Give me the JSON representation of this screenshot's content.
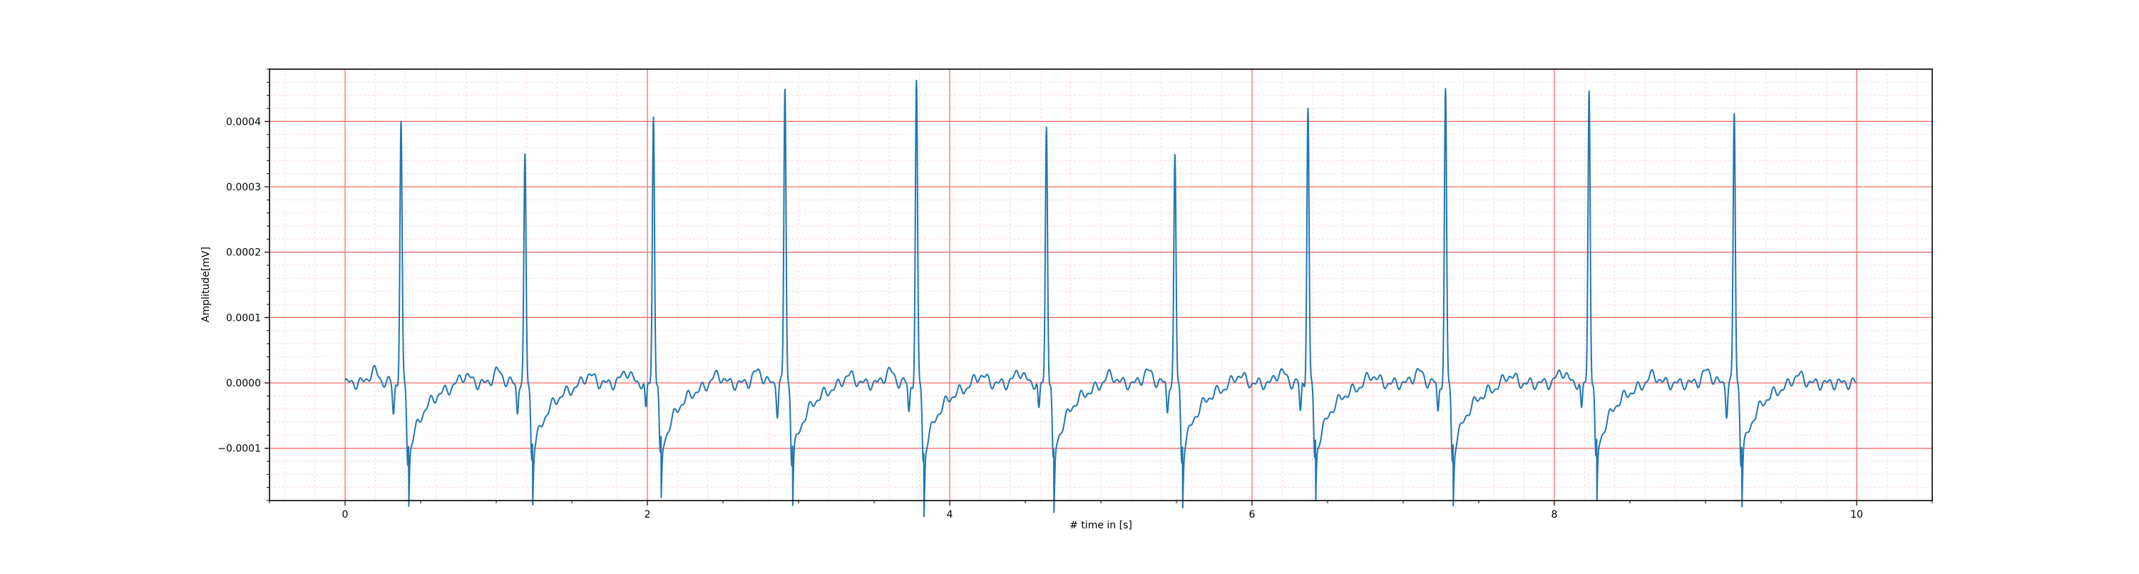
{
  "chart_data": {
    "type": "line",
    "title": "",
    "xlabel": "# time in [s]",
    "ylabel": "Amplitude[mV]",
    "xlim": [
      -0.5,
      10.5
    ],
    "ylim": [
      -0.00018,
      0.00048
    ],
    "x_ticks": [
      0,
      2,
      4,
      6,
      8,
      10
    ],
    "x_tick_labels": [
      "0",
      "2",
      "4",
      "6",
      "8",
      "10"
    ],
    "y_ticks": [
      -0.0001,
      0.0,
      0.0001,
      0.0002,
      0.0003,
      0.0004
    ],
    "y_tick_labels": [
      "−0.0001",
      "0.0000",
      "0.0001",
      "0.0002",
      "0.0003",
      "0.0004"
    ],
    "grid": {
      "major": true,
      "minor": true,
      "major_color": "#ff6b6b",
      "minor_color": "#ffd6dc",
      "x_major_step": 2,
      "y_major_step": 0.0001,
      "x_minor_step": 0.2,
      "y_minor_step": 2e-05
    },
    "series": [
      {
        "color": "#1f77b4",
        "duration_s": 10.0,
        "beats": [
          {
            "t": 0.37,
            "r": 0.000395,
            "s": -0.000142
          },
          {
            "t": 1.19,
            "r": 0.000342,
            "s": -0.000135
          },
          {
            "t": 2.04,
            "r": 0.00041,
            "s": -0.000135
          },
          {
            "t": 2.91,
            "r": 0.00045,
            "s": -0.00014
          },
          {
            "t": 3.78,
            "r": 0.000455,
            "s": -0.00014
          },
          {
            "t": 4.64,
            "r": 0.000395,
            "s": -0.000142
          },
          {
            "t": 5.49,
            "r": 0.000342,
            "s": -0.00014
          },
          {
            "t": 6.37,
            "r": 0.00042,
            "s": -0.000135
          },
          {
            "t": 7.28,
            "r": 0.000443,
            "s": -0.00014
          },
          {
            "t": 8.23,
            "r": 0.00045,
            "s": -0.00014
          },
          {
            "t": 9.19,
            "r": 0.000412,
            "s": -0.00014
          }
        ]
      }
    ]
  }
}
